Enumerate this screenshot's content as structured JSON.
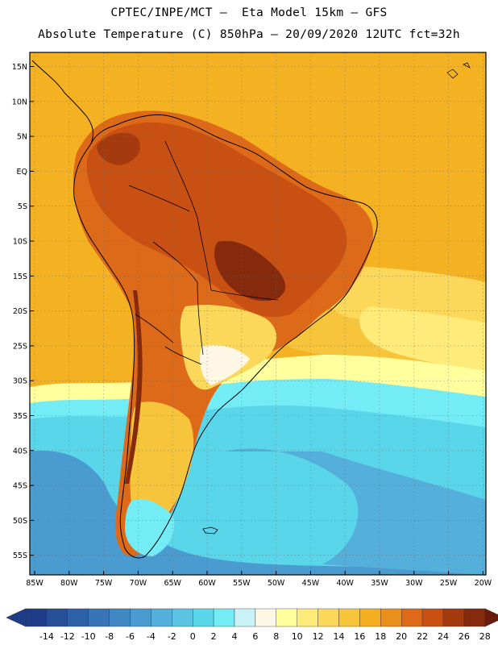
{
  "header": {
    "line1": "CPTEC/INPE/MCT –  Eta Model 15km – GFS",
    "line2": "Absolute Temperature (C) 850hPa – 20/09/2020 12UTC fct=32h"
  },
  "map": {
    "lat_labels": [
      "15N",
      "10N",
      "5N",
      "EQ",
      "5S",
      "10S",
      "15S",
      "20S",
      "25S",
      "30S",
      "35S",
      "40S",
      "45S",
      "50S",
      "55S"
    ],
    "lon_labels": [
      "85W",
      "80W",
      "75W",
      "70W",
      "65W",
      "60W",
      "55W",
      "50W",
      "45W",
      "40W",
      "35W",
      "30W",
      "25W",
      "20W"
    ],
    "grid": "dotted",
    "ocean_base_color": "#f4b223"
  },
  "colorbar": {
    "labels": [
      "-14",
      "-12",
      "-10",
      "-8",
      "-6",
      "-4",
      "-2",
      "0",
      "2",
      "4",
      "6",
      "8",
      "10",
      "12",
      "14",
      "16",
      "18",
      "20",
      "22",
      "24",
      "26",
      "28"
    ],
    "colors": [
      "#1f3c88",
      "#264f98",
      "#2e62a8",
      "#3775b6",
      "#3f88c3",
      "#4a9cd0",
      "#55afdb",
      "#5ac4e2",
      "#5ad6ea",
      "#74ecf6",
      "#c9f3f7",
      "#fff7e6",
      "#ffff9e",
      "#ffeb7a",
      "#fcd85a",
      "#f7c53c",
      "#f3ae21",
      "#eb8f1c",
      "#dd6a18",
      "#c95013",
      "#a63a0f",
      "#852a0c",
      "#6b1b0a"
    ]
  }
}
